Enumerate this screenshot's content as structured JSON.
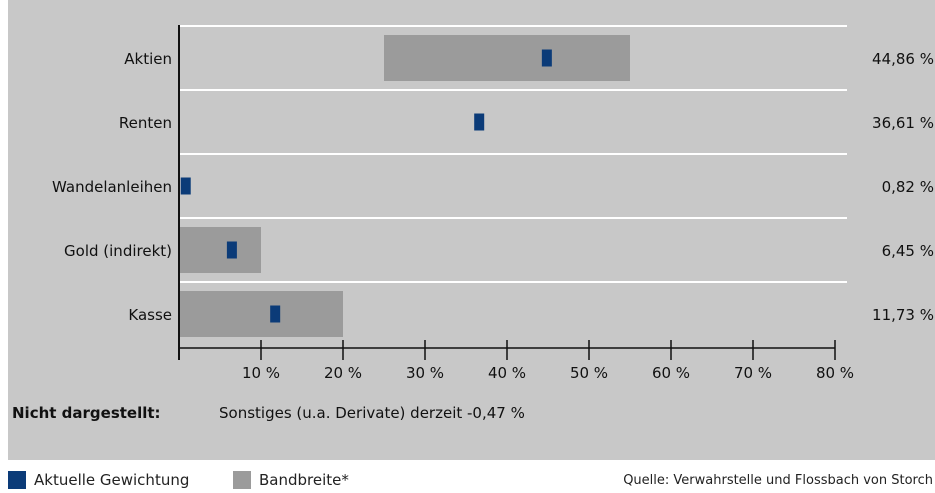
{
  "chart_data": {
    "type": "bar",
    "categories": [
      "Aktien",
      "Renten",
      "Wandelanleihen",
      "Gold (indirekt)",
      "Kasse"
    ],
    "series": [
      {
        "name": "Aktuelle Gewichtung",
        "values": [
          44.86,
          36.61,
          0.82,
          6.45,
          11.73
        ]
      },
      {
        "name": "Bandbreite*",
        "ranges": [
          [
            25,
            55
          ],
          null,
          null,
          [
            0,
            10
          ],
          [
            0,
            20
          ]
        ]
      }
    ],
    "value_labels": [
      "44,86 %",
      "36,61 %",
      "0,82 %",
      "6,45 %",
      "11,73 %"
    ],
    "xlim": [
      0,
      80
    ],
    "x_ticks": [
      10,
      20,
      30,
      40,
      50,
      60,
      70,
      80
    ],
    "x_tick_labels": [
      "10 %",
      "20 %",
      "30 %",
      "40 %",
      "50 %",
      "60 %",
      "70 %",
      "80 %"
    ],
    "orientation": "horizontal",
    "grid": true,
    "legend_position": "bottom-left",
    "colors": {
      "marker": "#0b3b78",
      "band": "#9b9b9b",
      "panel": "#c8c8c8",
      "gridline": "#ffffff"
    }
  },
  "note": {
    "label": "Nicht dargestellt:",
    "text": "Sonstiges (u.a. Derivate) derzeit  -0,47 %"
  },
  "legend": {
    "current": "Aktuelle Gewichtung",
    "band": "Bandbreite*"
  },
  "source": "Quelle: Verwahrstelle und Flossbach von Storch"
}
